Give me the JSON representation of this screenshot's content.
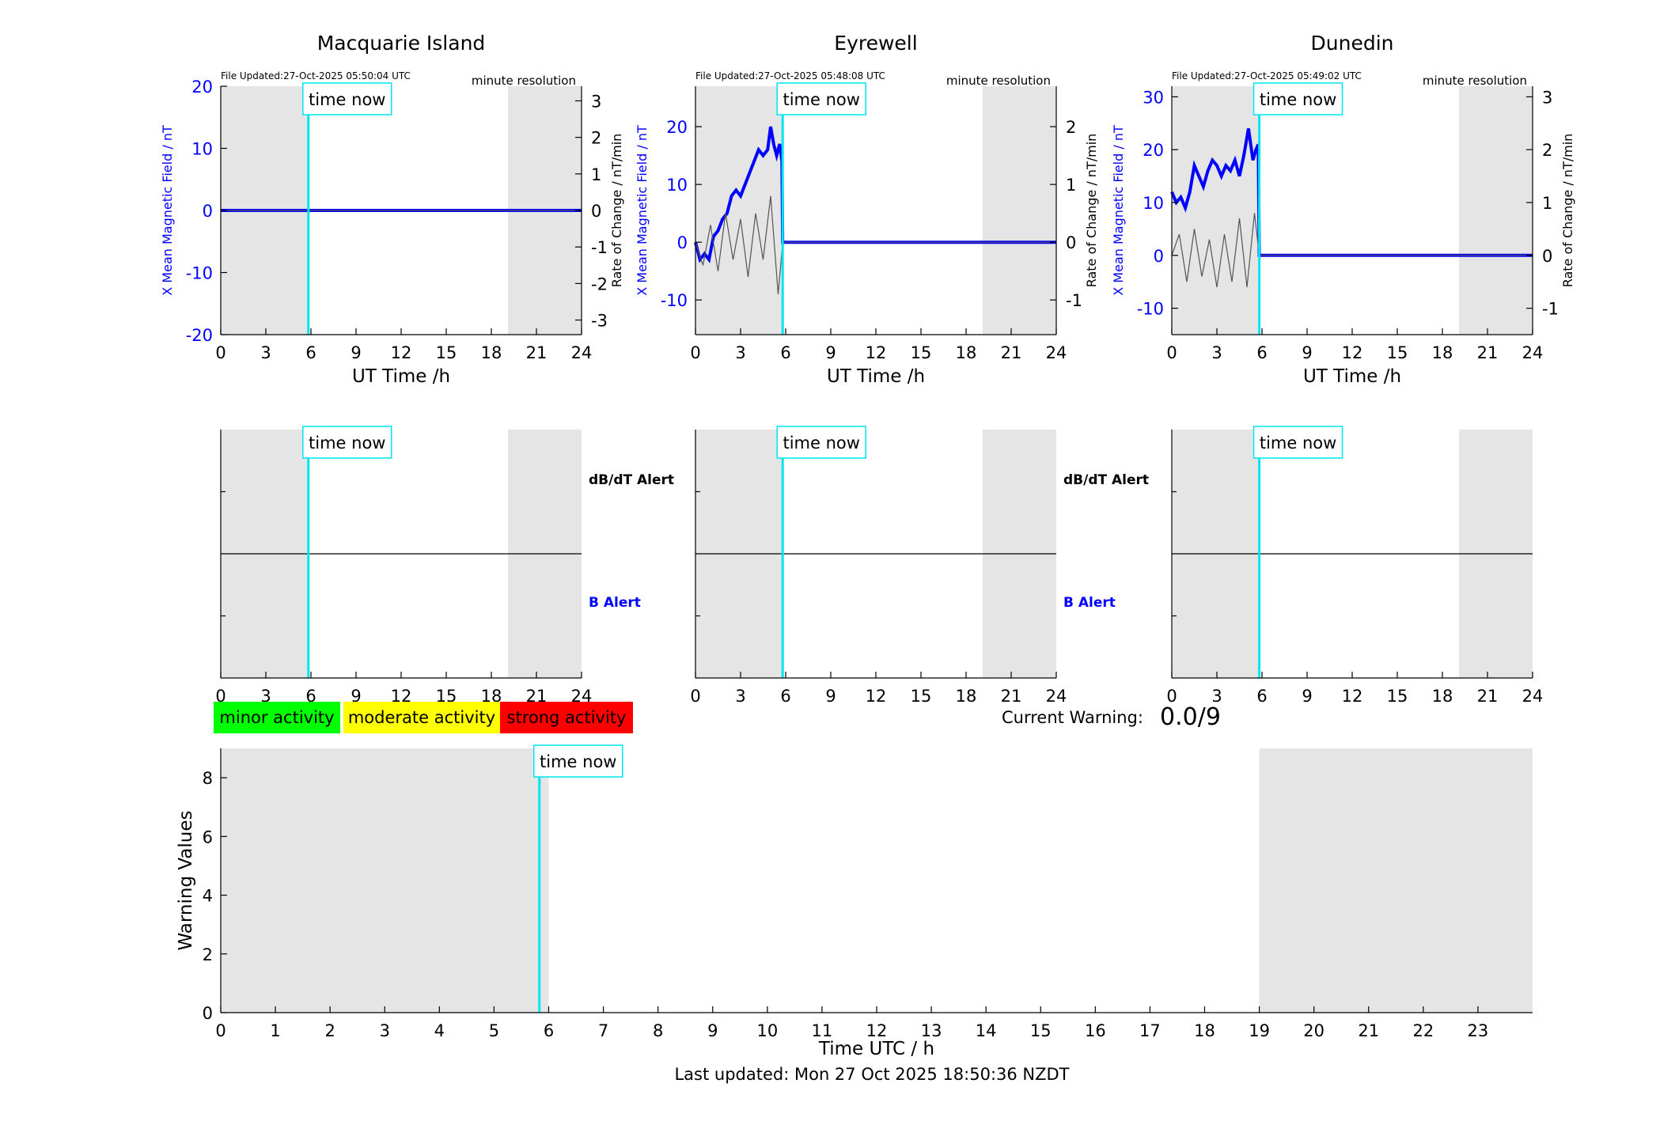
{
  "colors": {
    "field": "#0000ff",
    "rate": "#555555",
    "time_now": "#00e5ee",
    "shade": "#e5e5e5",
    "minor": "#00ff00",
    "moderate": "#ffff00",
    "strong": "#ff0000"
  },
  "common": {
    "time_now_label": "time now",
    "resolution_label": "minute resolution",
    "x_axis_label": "UT Time /h",
    "left_axis_label": "X Mean Magnetic Field / nT",
    "right_axis_label": "Rate of Change / nT/min",
    "dbdt_alert_label": "dB/dT Alert",
    "b_alert_label": "B Alert"
  },
  "legend": {
    "minor": "minor activity",
    "moderate": "moderate activity",
    "strong": "strong activity"
  },
  "current_warning": {
    "label": "Current Warning:",
    "value": "0.0/9"
  },
  "footer": {
    "last_updated": "Last updated: Mon 27 Oct 2025 18:50:36 NZDT"
  },
  "chart_data": [
    {
      "type": "line",
      "title": "Macquarie Island",
      "file_updated": "File Updated:27-Oct-2025 05:50:04 UTC",
      "xlabel": "UT Time /h",
      "ylabel": "X Mean Magnetic Field / nT",
      "y2label": "Rate of Change / nT/min",
      "xlim": [
        0,
        24
      ],
      "xticks": [
        0,
        3,
        6,
        9,
        12,
        15,
        18,
        21,
        24
      ],
      "ylim": [
        -20,
        20
      ],
      "yticks": [
        -20,
        -10,
        0,
        10,
        20
      ],
      "y2lim": [
        -3.4,
        3.4
      ],
      "y2ticks": [
        -3,
        -2,
        -1,
        0,
        1,
        2,
        3
      ],
      "time_now": 5.83,
      "shaded_hours": [
        [
          0,
          5.83
        ],
        [
          19.1,
          24
        ]
      ],
      "series": [
        {
          "axis": "left",
          "x": [
            0,
            24
          ],
          "y": [
            0,
            0
          ]
        },
        {
          "axis": "right",
          "x": [
            0,
            24
          ],
          "y": [
            0,
            0
          ]
        }
      ]
    },
    {
      "type": "line",
      "title": "Eyrewell",
      "file_updated": "File Updated:27-Oct-2025 05:48:08 UTC",
      "xlabel": "UT Time /h",
      "ylabel": "X Mean Magnetic Field / nT",
      "y2label": "Rate of Change / nT/min",
      "xlim": [
        0,
        24
      ],
      "xticks": [
        0,
        3,
        6,
        9,
        12,
        15,
        18,
        21,
        24
      ],
      "ylim": [
        -16,
        27
      ],
      "yticks": [
        -10,
        0,
        10,
        20
      ],
      "y2lim": [
        -1.6,
        2.7
      ],
      "y2ticks": [
        -1,
        0,
        1,
        2
      ],
      "time_now": 5.8,
      "shaded_hours": [
        [
          0,
          5.8
        ],
        [
          19.1,
          24
        ]
      ],
      "series": [
        {
          "axis": "left",
          "x": [
            0,
            0.3,
            0.6,
            0.9,
            1.2,
            1.5,
            1.8,
            2.1,
            2.4,
            2.7,
            3.0,
            3.3,
            3.6,
            3.9,
            4.2,
            4.5,
            4.8,
            5.0,
            5.2,
            5.4,
            5.6,
            5.75,
            5.8,
            6,
            24
          ],
          "y": [
            0,
            -3,
            -2,
            -3,
            1,
            2,
            4,
            5,
            8,
            9,
            8,
            10,
            12,
            14,
            16,
            15,
            16,
            20,
            17,
            15,
            17,
            14,
            0,
            0,
            0
          ]
        },
        {
          "axis": "right",
          "x": [
            0,
            0.5,
            1,
            1.5,
            2,
            2.5,
            3,
            3.5,
            4,
            4.5,
            5,
            5.5,
            5.8,
            6,
            24
          ],
          "y": [
            0,
            -0.4,
            0.3,
            -0.5,
            0.5,
            -0.3,
            0.4,
            -0.6,
            0.5,
            -0.3,
            0.8,
            -0.9,
            0,
            0,
            0
          ]
        }
      ]
    },
    {
      "type": "line",
      "title": "Dunedin",
      "file_updated": "File Updated:27-Oct-2025 05:49:02 UTC",
      "xlabel": "UT Time /h",
      "ylabel": "X Mean Magnetic Field / nT",
      "y2label": "Rate of Change / nT/min",
      "xlim": [
        0,
        24
      ],
      "xticks": [
        0,
        3,
        6,
        9,
        12,
        15,
        18,
        21,
        24
      ],
      "ylim": [
        -15,
        32
      ],
      "yticks": [
        -10,
        0,
        10,
        20,
        30
      ],
      "y2lim": [
        -1.5,
        3.2
      ],
      "y2ticks": [
        -1,
        0,
        1,
        2,
        3
      ],
      "time_now": 5.82,
      "shaded_hours": [
        [
          0,
          5.82
        ],
        [
          19.1,
          24
        ]
      ],
      "series": [
        {
          "axis": "left",
          "x": [
            0,
            0.3,
            0.6,
            0.9,
            1.2,
            1.5,
            1.8,
            2.1,
            2.4,
            2.7,
            3.0,
            3.3,
            3.6,
            3.9,
            4.2,
            4.5,
            4.8,
            5.1,
            5.4,
            5.6,
            5.75,
            5.82,
            6,
            24
          ],
          "y": [
            12,
            10,
            11,
            9,
            12,
            17,
            15,
            13,
            16,
            18,
            17,
            15,
            17,
            16,
            18,
            15,
            19,
            24,
            18,
            20,
            21,
            0,
            0,
            0
          ]
        },
        {
          "axis": "right",
          "x": [
            0,
            0.5,
            1,
            1.5,
            2,
            2.5,
            3,
            3.5,
            4,
            4.5,
            5,
            5.5,
            5.82,
            6,
            24
          ],
          "y": [
            0,
            0.4,
            -0.5,
            0.5,
            -0.4,
            0.3,
            -0.6,
            0.4,
            -0.5,
            0.7,
            -0.6,
            0.8,
            0,
            0,
            0
          ]
        }
      ]
    },
    {
      "type": "line",
      "title": "",
      "xlabel": "",
      "xlim": [
        0,
        24
      ],
      "xticks": [
        0,
        3,
        6,
        9,
        12,
        15,
        18,
        21,
        24
      ],
      "time_now": 5.83,
      "shaded_hours": [
        [
          0,
          5.83
        ],
        [
          19.1,
          24
        ]
      ],
      "series": []
    },
    {
      "type": "line",
      "title": "",
      "xlabel": "",
      "xlim": [
        0,
        24
      ],
      "xticks": [
        0,
        3,
        6,
        9,
        12,
        15,
        18,
        21,
        24
      ],
      "time_now": 5.8,
      "shaded_hours": [
        [
          0,
          5.8
        ],
        [
          19.1,
          24
        ]
      ],
      "series": []
    },
    {
      "type": "line",
      "title": "",
      "xlabel": "",
      "xlim": [
        0,
        24
      ],
      "xticks": [
        0,
        3,
        6,
        9,
        12,
        15,
        18,
        21,
        24
      ],
      "time_now": 5.82,
      "shaded_hours": [
        [
          0,
          5.82
        ],
        [
          19.1,
          24
        ]
      ],
      "series": []
    },
    {
      "type": "bar",
      "title": "",
      "xlabel": "Time UTC / h",
      "ylabel": "Warning Values",
      "xlim": [
        0,
        24
      ],
      "xticks": [
        0,
        1,
        2,
        3,
        4,
        5,
        6,
        7,
        8,
        9,
        10,
        11,
        12,
        13,
        14,
        15,
        16,
        17,
        18,
        19,
        20,
        21,
        22,
        23
      ],
      "ylim": [
        0,
        9
      ],
      "yticks": [
        0,
        2,
        4,
        6,
        8
      ],
      "time_now": 5.83,
      "shaded_hours": [
        [
          0,
          6
        ],
        [
          19,
          24
        ]
      ],
      "values": []
    }
  ]
}
